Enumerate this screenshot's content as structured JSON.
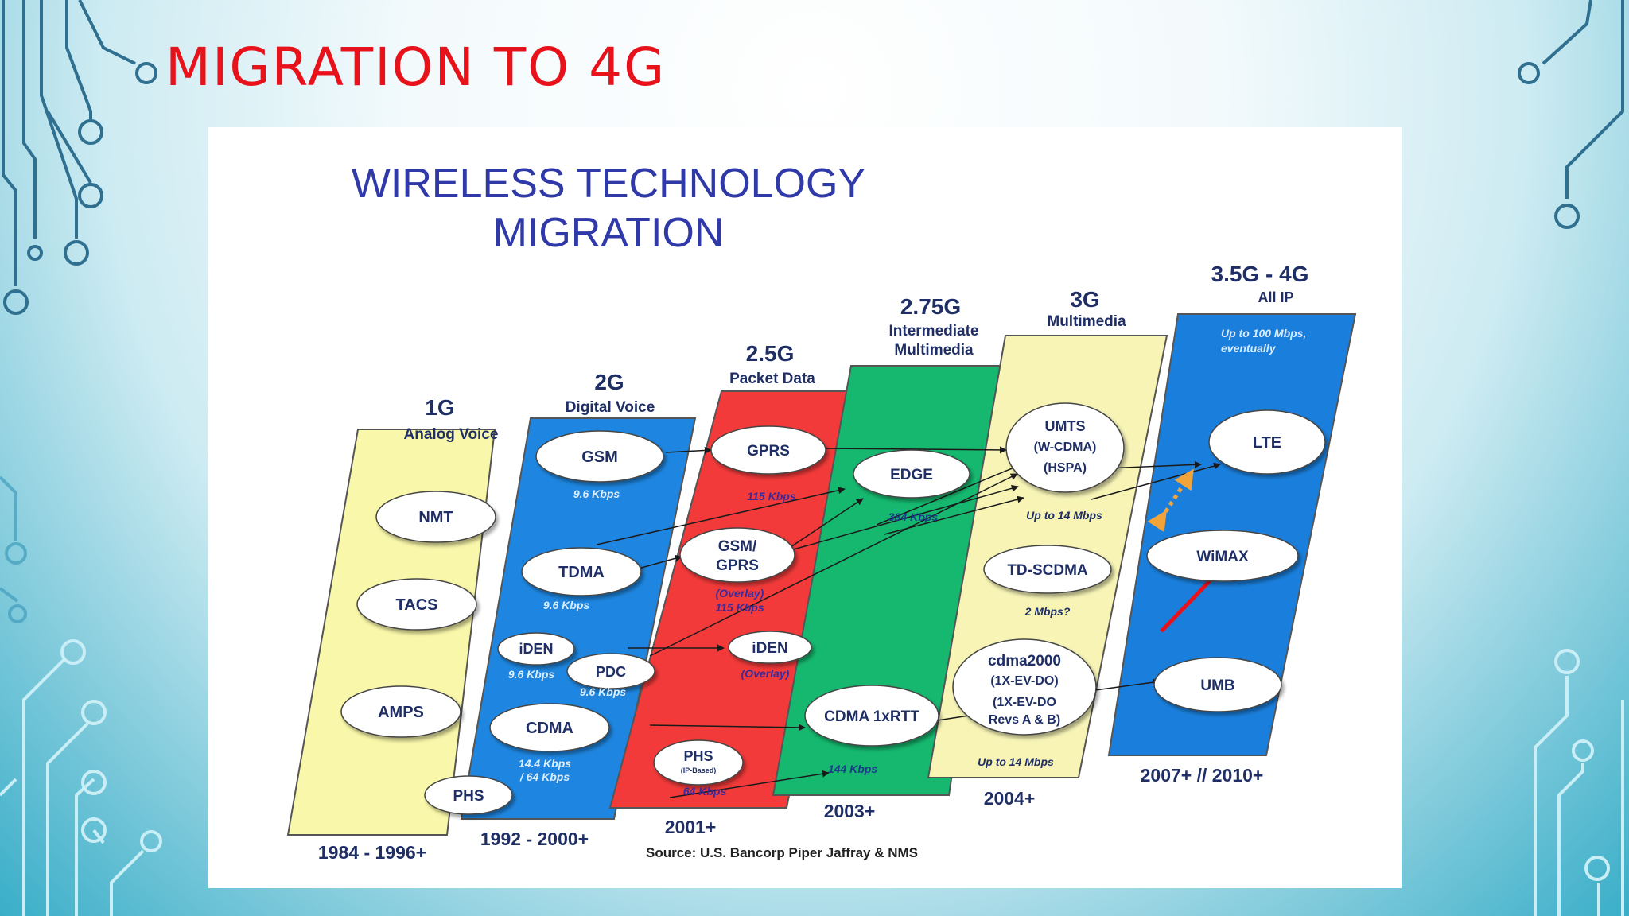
{
  "slide": {
    "title": "MIGRATION TO 4G"
  },
  "figure": {
    "title_line1": "WIRELESS TECHNOLOGY",
    "title_line2": "MIGRATION",
    "source": "Source:  U.S. Bancorp Piper Jaffray & NMS",
    "colors": {
      "title": "#2f39a8",
      "band_yellow": "#f9f7a9",
      "band_blue": "#1e86e0",
      "band_red": "#f23a3a",
      "band_green": "#15b86e",
      "band_lightyellow": "#f7f4b6",
      "band_4g": "#1a7fdc",
      "speed_text": "#cde6ff",
      "highlight_arrow": "#e8121b",
      "dotted_arrow": "#f2a33a"
    },
    "generations": [
      {
        "gen": "1G",
        "subtitle": "Analog Voice",
        "years": "1984 - 1996+"
      },
      {
        "gen": "2G",
        "subtitle": "Digital Voice",
        "years": "1992 - 2000+"
      },
      {
        "gen": "2.5G",
        "subtitle": "Packet Data",
        "years": "2001+"
      },
      {
        "gen": "2.75G",
        "subtitle_line1": "Intermediate",
        "subtitle_line2": "Multimedia",
        "years": "2003+"
      },
      {
        "gen": "3G",
        "subtitle": "Multimedia",
        "years": "2004+"
      },
      {
        "gen": "3.5G - 4G",
        "subtitle": "All IP",
        "years": "2007+ // 2010+"
      }
    ],
    "band_notes": {
      "up_to_100_line1": "Up to 100 Mbps,",
      "up_to_100_line2": "eventually"
    },
    "nodes": {
      "nmt": "NMT",
      "tacs": "TACS",
      "amps": "AMPS",
      "gsm": "GSM",
      "gsm_speed": "9.6 Kbps",
      "tdma": "TDMA",
      "tdma_speed": "9.6 Kbps",
      "iden": "iDEN",
      "iden_speed": "9.6 Kbps",
      "pdc": "PDC",
      "pdc_speed": "9.6 Kbps",
      "cdma": "CDMA",
      "cdma_speed_line1": "14.4 Kbps",
      "cdma_speed_line2": "/ 64 Kbps",
      "phs": "PHS",
      "gprs": "GPRS",
      "gprs_speed": "115 Kbps",
      "gsm_gprs_line1": "GSM/",
      "gsm_gprs_line2": "GPRS",
      "gsm_gprs_note_line1": "(Overlay)",
      "gsm_gprs_note_line2": "115 Kbps",
      "iden_25": "iDEN",
      "iden_25_note": "(Overlay)",
      "phs_ip": "PHS",
      "phs_ip_sub": "(IP-Based)",
      "phs_ip_speed": "64 Kbps",
      "edge": "EDGE",
      "edge_speed": "384 Kbps",
      "cdma_1xrtt": "CDMA 1xRTT",
      "cdma_1xrtt_speed": "144 Kbps",
      "umts_line1": "UMTS",
      "umts_line2": "(W-CDMA)",
      "umts_line3": "(HSPA)",
      "umts_speed": "Up to 14 Mbps",
      "td_scdma": "TD-SCDMA",
      "td_scdma_speed": "2 Mbps?",
      "cdma2000_line1": "cdma2000",
      "cdma2000_line2": "(1X-EV-DO)",
      "cdma2000_line3": "(1X-EV-DO",
      "cdma2000_line4": "Revs A & B)",
      "cdma2000_speed": "Up to 14 Mbps",
      "lte": "LTE",
      "wimax": "WiMAX",
      "umb": "UMB"
    }
  }
}
